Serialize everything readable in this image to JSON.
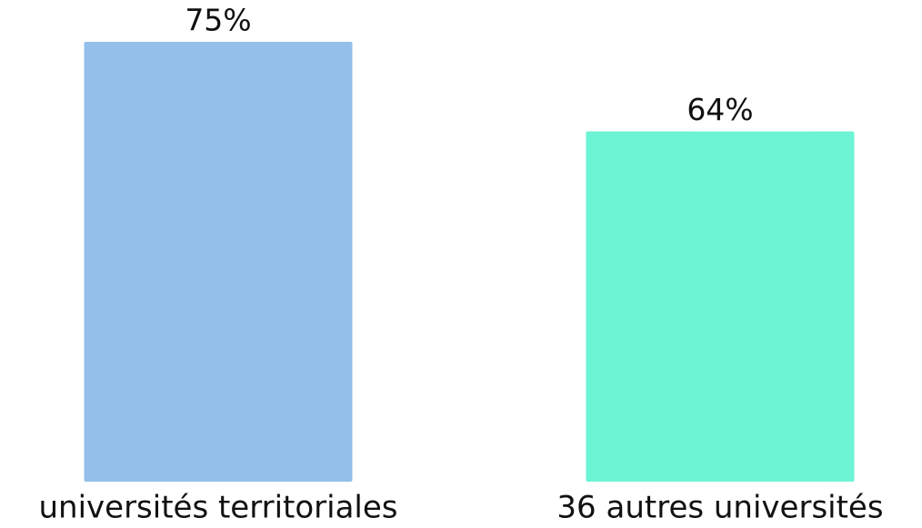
{
  "chart_data": {
    "type": "bar",
    "categories": [
      "universités territoriales",
      "36 autres universités"
    ],
    "values": [
      75,
      64
    ],
    "value_labels": [
      "75%",
      "64%"
    ],
    "colors": [
      "#93bfea",
      "#6cf4d4"
    ],
    "ylim": [
      21,
      75
    ]
  }
}
